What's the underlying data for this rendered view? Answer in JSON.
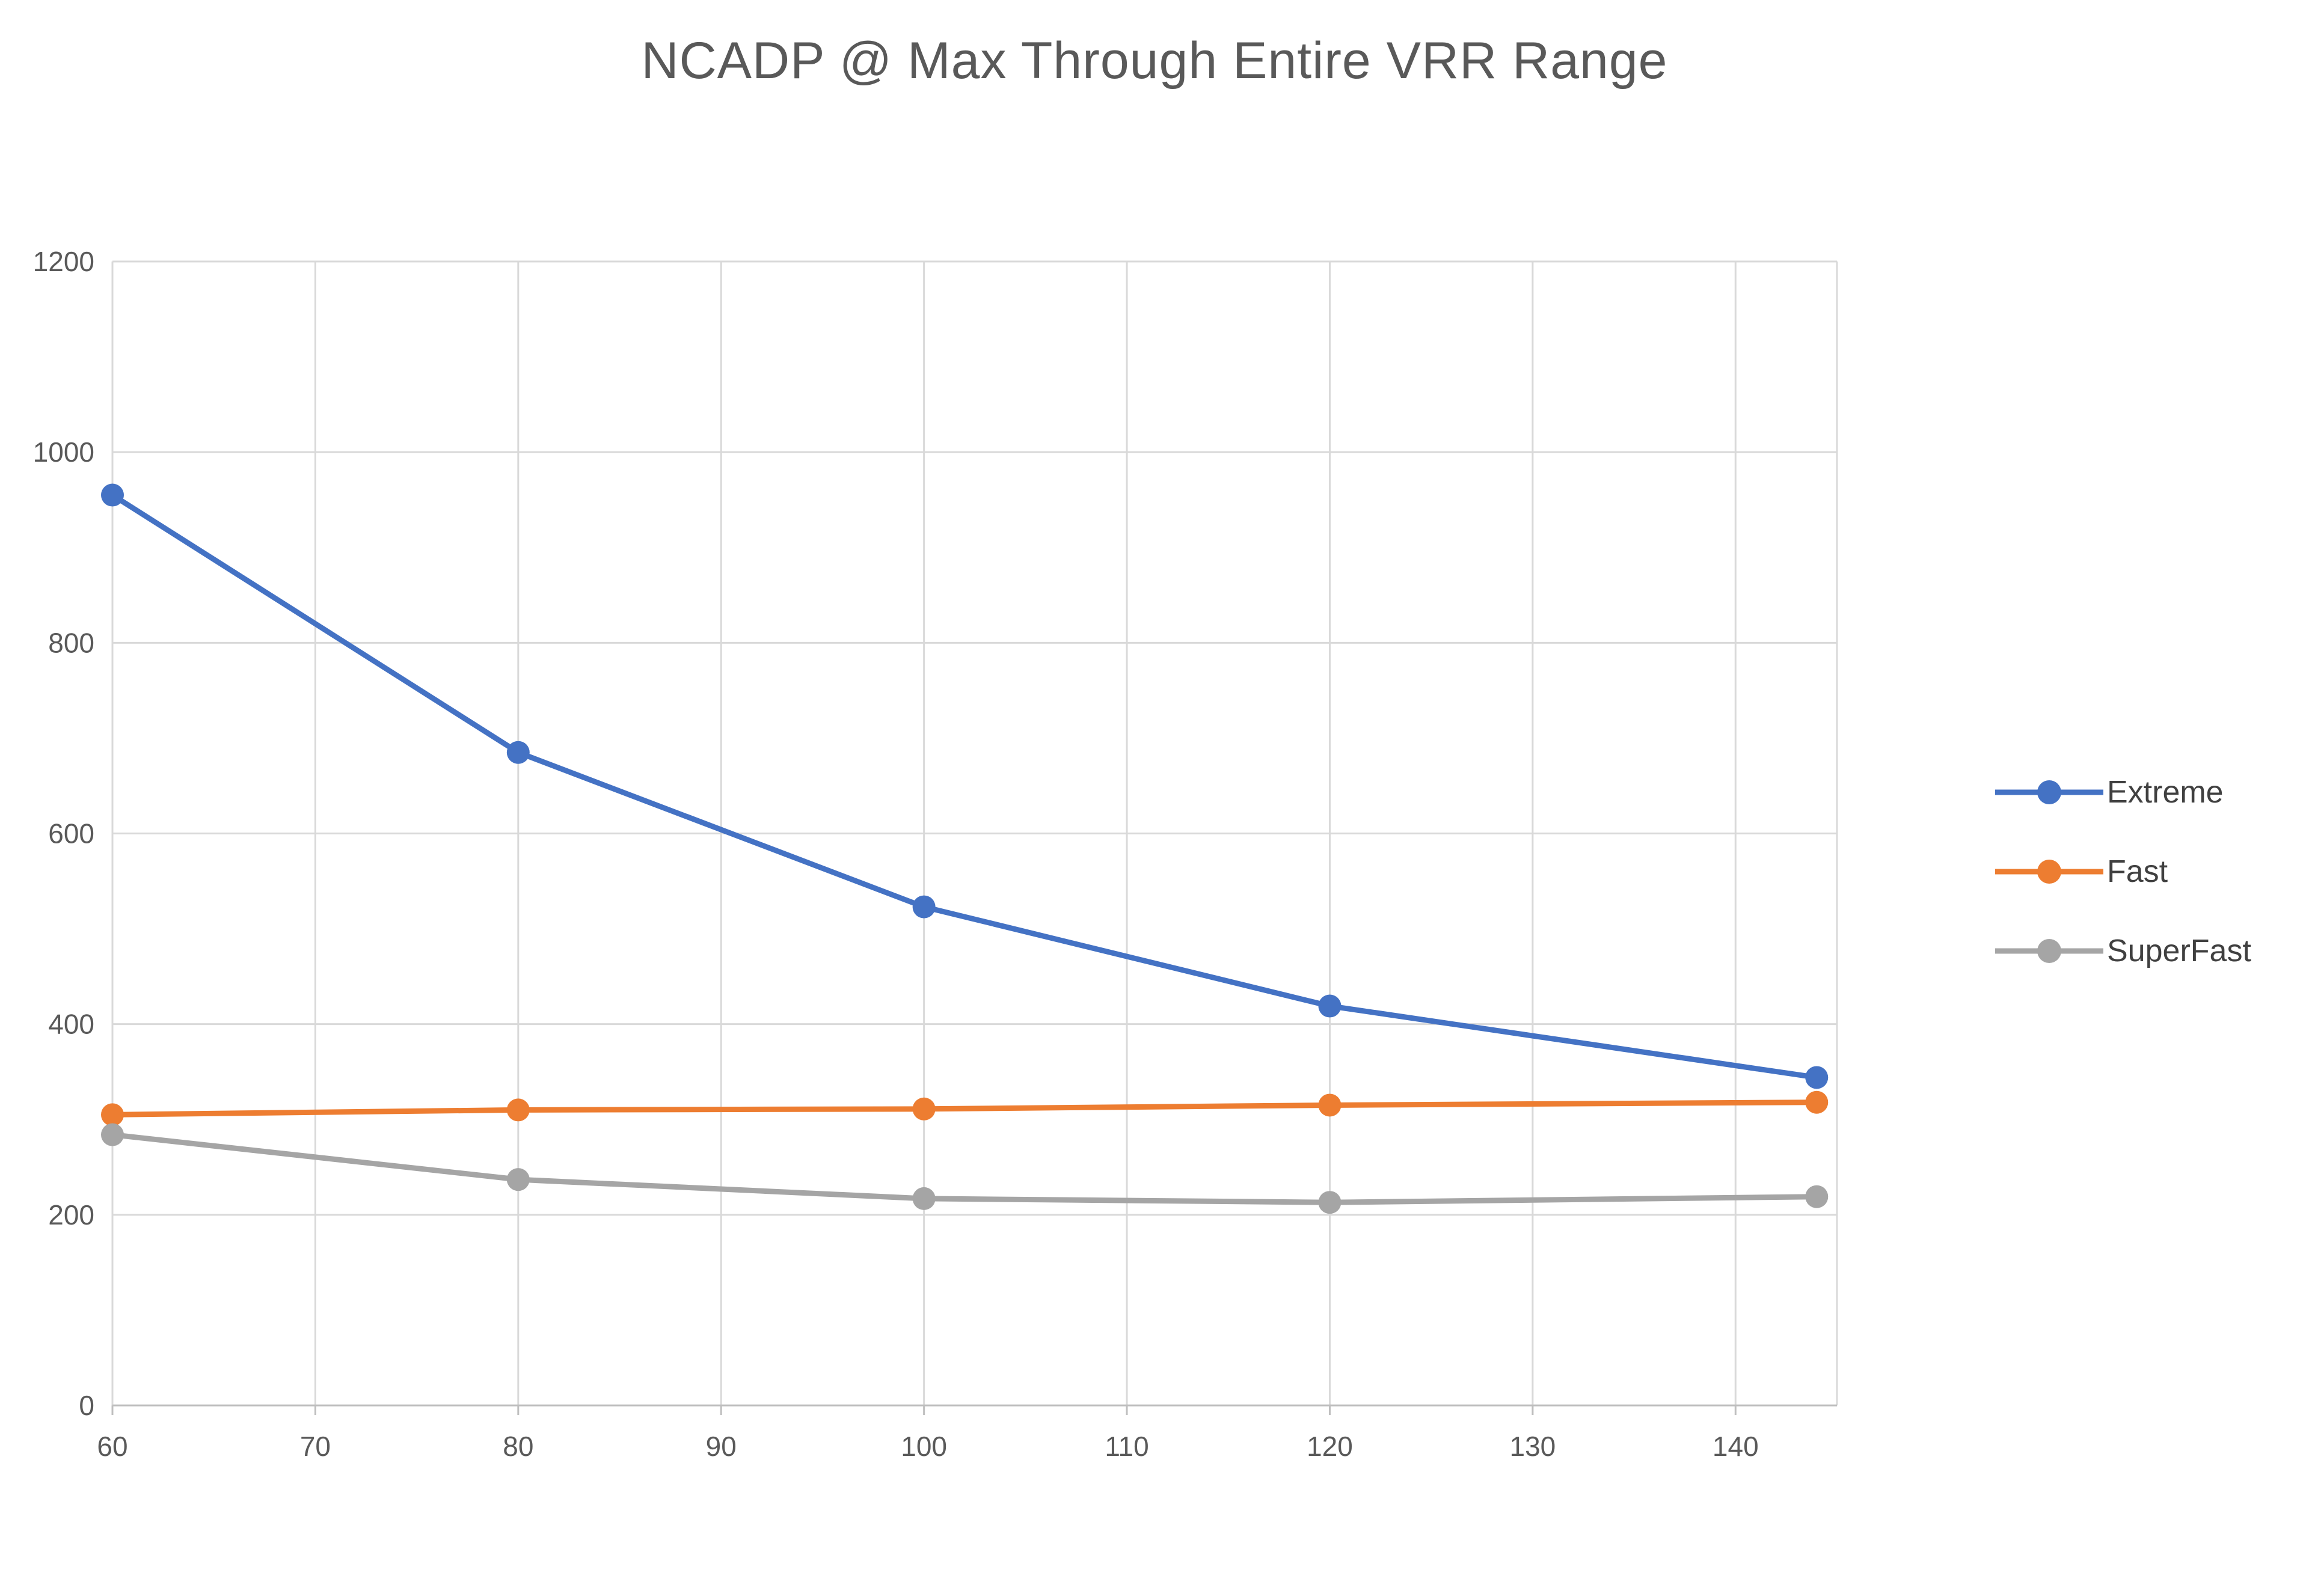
{
  "chart_data": {
    "type": "line",
    "title": "NCADP @ Max Through Entire VRR Range",
    "x": [
      60,
      80,
      100,
      120,
      144
    ],
    "series": [
      {
        "name": "Extreme",
        "color": "#4472C4",
        "values": [
          955,
          685,
          523,
          419,
          344
        ]
      },
      {
        "name": "Fast",
        "color": "#ED7D31",
        "values": [
          305,
          310,
          311,
          315,
          318
        ]
      },
      {
        "name": "SuperFast",
        "color": "#A5A5A5",
        "values": [
          284,
          237,
          217,
          213,
          219
        ]
      }
    ],
    "xlabel": "",
    "ylabel": "",
    "xlim": [
      60,
      145
    ],
    "ylim": [
      0,
      1200
    ],
    "x_ticks": [
      60,
      70,
      80,
      90,
      100,
      110,
      120,
      130,
      140
    ],
    "y_ticks": [
      0,
      200,
      400,
      600,
      800,
      1000,
      1200
    ],
    "grid": true,
    "legend_position": "right",
    "legend": [
      "Extreme",
      "Fast",
      "SuperFast"
    ],
    "colors": {
      "grid": "#D9D9D9",
      "axis_line": "#BFBFBF",
      "axis_text": "#595959",
      "title_text": "#595959",
      "legend_text": "#404040"
    }
  }
}
